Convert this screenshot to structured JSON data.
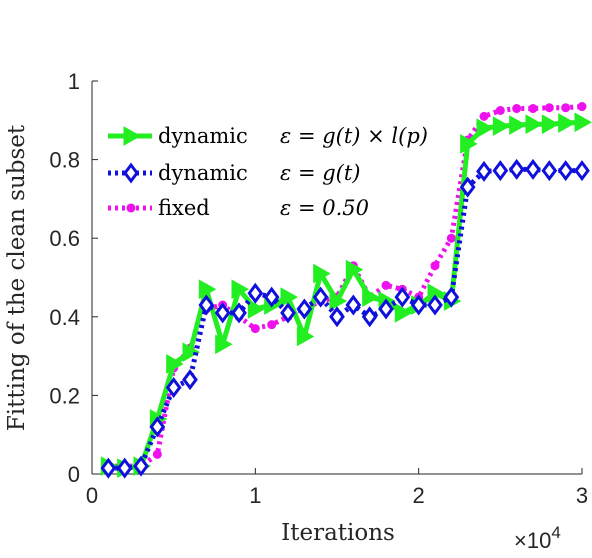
{
  "chart_data": {
    "type": "line",
    "xlabel": "Iterations",
    "ylabel": "Fitting of the clean subset",
    "x_exponent_label": "×10",
    "x_exponent_power": "4",
    "xlim": [
      0,
      3
    ],
    "ylim": [
      0,
      1
    ],
    "x_ticks": [
      0,
      1,
      2,
      3
    ],
    "x_tick_labels": [
      "0",
      "1",
      "2",
      "3"
    ],
    "y_ticks": [
      0,
      0.2,
      0.4,
      0.6,
      0.8,
      1
    ],
    "y_tick_labels": [
      "0",
      "0.2",
      "0.4",
      "0.6",
      "0.8",
      "1"
    ],
    "grid": false,
    "legend_position": "upper-left",
    "x": [
      0.1,
      0.2,
      0.3,
      0.4,
      0.5,
      0.6,
      0.7,
      0.8,
      0.9,
      1.0,
      1.1,
      1.2,
      1.3,
      1.4,
      1.5,
      1.6,
      1.7,
      1.8,
      1.9,
      2.0,
      2.1,
      2.2,
      2.3,
      2.4,
      2.5,
      2.6,
      2.7,
      2.8,
      2.9,
      3.0
    ],
    "series": [
      {
        "name": "dynamic ε = g(t) × l(p)",
        "legend_prefix": "dynamic",
        "legend_formula": "ε = g(t) × l(p)",
        "color": "#22ee22",
        "marker": "triangle-right",
        "line_style": "solid",
        "values": [
          0.02,
          0.015,
          0.02,
          0.14,
          0.28,
          0.31,
          0.47,
          0.33,
          0.47,
          0.42,
          0.43,
          0.45,
          0.35,
          0.51,
          0.44,
          0.52,
          0.45,
          0.44,
          0.41,
          0.43,
          0.46,
          0.44,
          0.84,
          0.88,
          0.885,
          0.888,
          0.89,
          0.89,
          0.893,
          0.895
        ]
      },
      {
        "name": "dynamic ε = g(t)",
        "legend_prefix": "dynamic",
        "legend_formula": "ε = g(t)",
        "color": "#1010dd",
        "marker": "diamond",
        "line_style": "dotted",
        "values": [
          0.015,
          0.015,
          0.02,
          0.12,
          0.22,
          0.24,
          0.43,
          0.41,
          0.41,
          0.46,
          0.45,
          0.41,
          0.42,
          0.45,
          0.4,
          0.43,
          0.4,
          0.42,
          0.45,
          0.43,
          0.43,
          0.45,
          0.73,
          0.77,
          0.772,
          0.775,
          0.775,
          0.772,
          0.772,
          0.772
        ]
      },
      {
        "name": "fixed ε = 0.50",
        "legend_prefix": "fixed",
        "legend_formula": "ε = 0.50",
        "color": "#ee11ee",
        "marker": "circle",
        "line_style": "dotted",
        "values": [
          0.02,
          0.02,
          0.02,
          0.05,
          0.27,
          0.32,
          0.42,
          0.43,
          0.4,
          0.37,
          0.38,
          0.4,
          0.42,
          0.44,
          0.45,
          0.53,
          0.45,
          0.48,
          0.47,
          0.45,
          0.53,
          0.6,
          0.85,
          0.91,
          0.925,
          0.93,
          0.93,
          0.932,
          0.932,
          0.935
        ]
      }
    ]
  }
}
